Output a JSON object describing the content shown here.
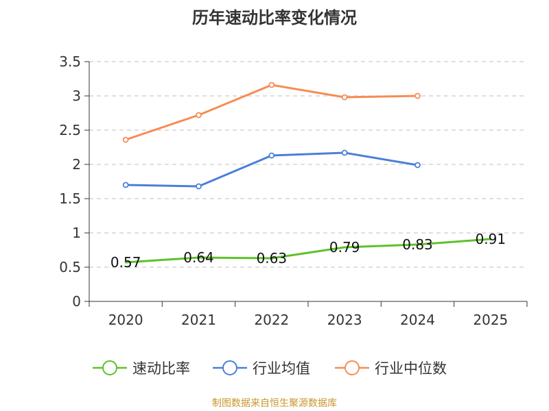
{
  "title": "历年速动比率变化情况",
  "source": "制图数据来自恒生聚源数据库",
  "chart_data": {
    "type": "line",
    "title": "历年速动比率变化情况",
    "categories": [
      "2020",
      "2021",
      "2022",
      "2023",
      "2024",
      "2025"
    ],
    "y_ticks": [
      "0",
      "0.5",
      "1",
      "1.5",
      "2",
      "2.5",
      "3",
      "3.5"
    ],
    "ylim": [
      0,
      3.5
    ],
    "grid": true,
    "legend_position": "bottom",
    "series": [
      {
        "name": "速动比率",
        "color": "#5ec12a",
        "values": [
          0.57,
          0.64,
          0.63,
          0.79,
          0.83,
          0.91
        ],
        "labels": [
          "0.57",
          "0.64",
          "0.63",
          "0.79",
          "0.83",
          "0.91"
        ],
        "show_labels": true,
        "show_markers": false
      },
      {
        "name": "行业均值",
        "color": "#4a7fd8",
        "values": [
          1.7,
          1.68,
          2.13,
          2.17,
          1.99,
          null
        ],
        "show_labels": false,
        "show_markers": true
      },
      {
        "name": "行业中位数",
        "color": "#f78c53",
        "values": [
          2.36,
          2.72,
          3.16,
          2.98,
          3.0,
          null
        ],
        "show_labels": false,
        "show_markers": true
      }
    ]
  }
}
